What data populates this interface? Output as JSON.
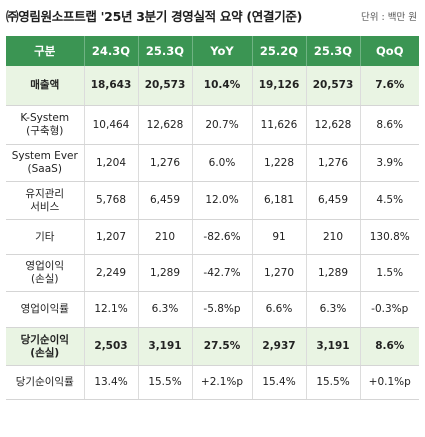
{
  "title": "㈜영림원소프트랩 '25년 3분기 경영실적 요약 (연결기준)",
  "unit": "단위 : 백만 원",
  "headers": [
    "구분",
    "24.3Q",
    "25.3Q",
    "YoY",
    "25.2Q",
    "25.3Q",
    "QoQ"
  ],
  "rows": [
    {
      "label1": "매출액",
      "label2": "",
      "values": [
        "18,643",
        "20,573",
        "10.4%",
        "19,126",
        "20,573",
        "7.6%"
      ]
    },
    {
      "label1": "K-System",
      "label2": "(구축형)",
      "values": [
        "10,464",
        "12,628",
        "20.7%",
        "11,626",
        "12,628",
        "8.6%"
      ]
    },
    {
      "label1": "System Ever",
      "label2": "(SaaS)",
      "values": [
        "1,204",
        "1,276",
        "6.0%",
        "1,228",
        "1,276",
        "3.9%"
      ]
    },
    {
      "label1": "유지관리",
      "label2": "서비스",
      "values": [
        "5,768",
        "6,459",
        "12.0%",
        "6,181",
        "6,459",
        "4.5%"
      ]
    },
    {
      "label1": "기타",
      "label2": "",
      "values": [
        "1,207",
        "210",
        "-82.6%",
        "91",
        "210",
        "130.8%"
      ]
    },
    {
      "label1": "영업이익",
      "label2": "(손실)",
      "values": [
        "2,249",
        "1,289",
        "-42.7%",
        "1,270",
        "1,289",
        "1.5%"
      ]
    },
    {
      "label1": "영업이익률",
      "label2": "",
      "values": [
        "12.1%",
        "6.3%",
        "-5.8%p",
        "6.6%",
        "6.3%",
        "-0.3%p"
      ]
    },
    {
      "label1": "당기순이익",
      "label2": "(손실)",
      "values": [
        "2,503",
        "3,191",
        "27.5%",
        "2,937",
        "3,191",
        "8.6%"
      ]
    },
    {
      "label1": "당기순이익률",
      "label2": "",
      "values": [
        "13.4%",
        "15.5%",
        "+2.1%p",
        "15.4%",
        "15.5%",
        "+0.1%p"
      ]
    }
  ],
  "colors": {
    "header_bg": "#3b9553",
    "highlight_bg": "#e9f4e3"
  }
}
